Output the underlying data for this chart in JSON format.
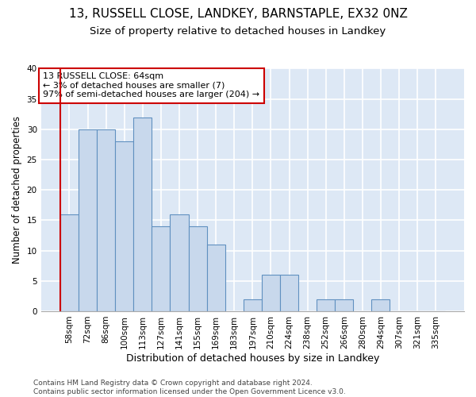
{
  "title1": "13, RUSSELL CLOSE, LANDKEY, BARNSTAPLE, EX32 0NZ",
  "title2": "Size of property relative to detached houses in Landkey",
  "xlabel": "Distribution of detached houses by size in Landkey",
  "ylabel": "Number of detached properties",
  "categories": [
    "58sqm",
    "72sqm",
    "86sqm",
    "100sqm",
    "113sqm",
    "127sqm",
    "141sqm",
    "155sqm",
    "169sqm",
    "183sqm",
    "197sqm",
    "210sqm",
    "224sqm",
    "238sqm",
    "252sqm",
    "266sqm",
    "280sqm",
    "294sqm",
    "307sqm",
    "321sqm",
    "335sqm"
  ],
  "values": [
    16,
    30,
    30,
    28,
    32,
    14,
    16,
    14,
    11,
    0,
    2,
    6,
    6,
    0,
    2,
    2,
    0,
    2,
    0,
    0,
    0
  ],
  "bar_color": "#c8d8ec",
  "bar_edge_color": "#6090c0",
  "annotation_box_text": "13 RUSSELL CLOSE: 64sqm\n← 3% of detached houses are smaller (7)\n97% of semi-detached houses are larger (204) →",
  "annotation_box_color": "#ffffff",
  "annotation_box_edge_color": "#cc0000",
  "ylim": [
    0,
    40
  ],
  "yticks": [
    0,
    5,
    10,
    15,
    20,
    25,
    30,
    35,
    40
  ],
  "fig_bg_color": "#ffffff",
  "plot_bg_color": "#dde8f5",
  "grid_color": "#ffffff",
  "footer": "Contains HM Land Registry data © Crown copyright and database right 2024.\nContains public sector information licensed under the Open Government Licence v3.0.",
  "title1_fontsize": 11,
  "title2_fontsize": 9.5,
  "xlabel_fontsize": 9,
  "ylabel_fontsize": 8.5,
  "footer_fontsize": 6.5,
  "annot_fontsize": 8,
  "tick_fontsize": 7.5
}
